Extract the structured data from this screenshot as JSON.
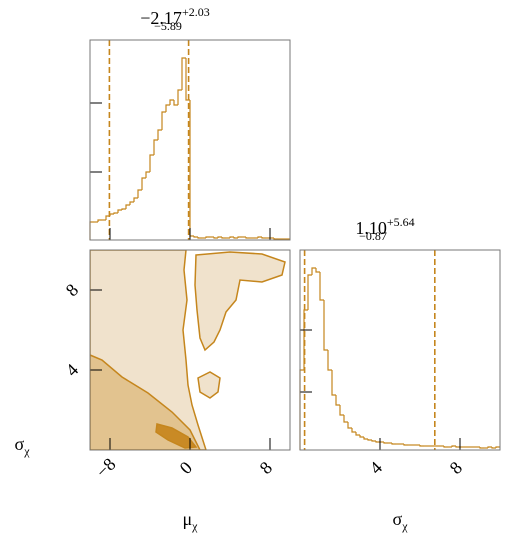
{
  "chart_data": [
    {
      "type": "histogram",
      "title": "−2.17",
      "title_upper": "+2.03",
      "title_lower": "−5.89",
      "color": "#c5861d",
      "bins": [
        -10,
        -9.6,
        -9.2,
        -8.8,
        -8.4,
        -8,
        -7.6,
        -7.2,
        -6.8,
        -6.4,
        -6,
        -5.6,
        -5.2,
        -4.8,
        -4.4,
        -4,
        -3.6,
        -3.2,
        -2.8,
        -2.4,
        -2,
        -1.6,
        -1.2,
        -0.8,
        -0.4,
        0,
        0.4,
        0.8,
        1.2,
        1.6,
        2,
        2.4,
        2.8,
        3.2,
        3.6,
        4,
        4.4,
        4.8,
        5.2,
        5.6,
        6,
        6.4,
        6.8,
        7.2,
        7.6,
        8,
        8.4,
        8.8,
        9.2,
        9.6,
        10
      ],
      "values": [
        18,
        18,
        20,
        20,
        24,
        26,
        27,
        30,
        31,
        35,
        38,
        42,
        50,
        62,
        68,
        85,
        100,
        110,
        128,
        135,
        140,
        135,
        150,
        182,
        140,
        4,
        3,
        2,
        2,
        3,
        3,
        2,
        3,
        2,
        2,
        3,
        2,
        3,
        3,
        2,
        2,
        2,
        3,
        2,
        2,
        2,
        1,
        1,
        1,
        1
      ],
      "quantiles": [
        -8.06,
        -0.14
      ],
      "xlim": [
        -10,
        10
      ],
      "xticks": [
        -8,
        0,
        8
      ],
      "ylim": [
        0,
        200
      ],
      "yticks": [
        68,
        137
      ]
    },
    {
      "type": "contour",
      "xlabel": "μ",
      "xlabel_sub": "χ",
      "ylabel": "σ",
      "ylabel_sub": "χ",
      "xlim": [
        -10,
        10
      ],
      "xticks": [
        {
          "value": -8,
          "label": "−8"
        },
        0,
        8
      ],
      "ylim": [
        0,
        10
      ],
      "yticks": [
        4,
        8
      ]
    },
    {
      "type": "histogram",
      "title": "1.10",
      "title_upper": "+5.64",
      "title_lower": "−0.87",
      "color": "#c5861d",
      "xlabel": "σ",
      "xlabel_sub": "χ",
      "bins": [
        0,
        0.2,
        0.4,
        0.6,
        0.8,
        1,
        1.2,
        1.4,
        1.6,
        1.8,
        2,
        2.2,
        2.4,
        2.6,
        2.8,
        3,
        3.2,
        3.4,
        3.6,
        3.8,
        4,
        4.2,
        4.4,
        4.6,
        4.8,
        5,
        5.2,
        5.4,
        5.6,
        5.8,
        6,
        6.2,
        6.4,
        6.6,
        6.8,
        7,
        7.2,
        7.4,
        7.6,
        7.8,
        8,
        8.2,
        8.4,
        8.6,
        8.8,
        9,
        9.2,
        9.4,
        9.6,
        9.8,
        10
      ],
      "values": [
        80,
        140,
        175,
        182,
        178,
        150,
        100,
        80,
        55,
        45,
        35,
        28,
        22,
        18,
        15,
        13,
        11,
        10,
        9,
        8,
        8,
        7,
        7,
        6,
        6,
        6,
        5,
        5,
        5,
        5,
        4,
        4,
        4,
        4,
        4,
        4,
        3,
        3,
        4,
        3,
        3,
        3,
        3,
        3,
        3,
        2,
        2,
        3,
        2,
        3
      ],
      "quantiles": [
        0.23,
        6.74
      ],
      "xlim": [
        0,
        10
      ],
      "xticks": [
        4,
        8
      ],
      "ylim": [
        0,
        200
      ],
      "yticks": [
        58,
        120
      ]
    }
  ]
}
